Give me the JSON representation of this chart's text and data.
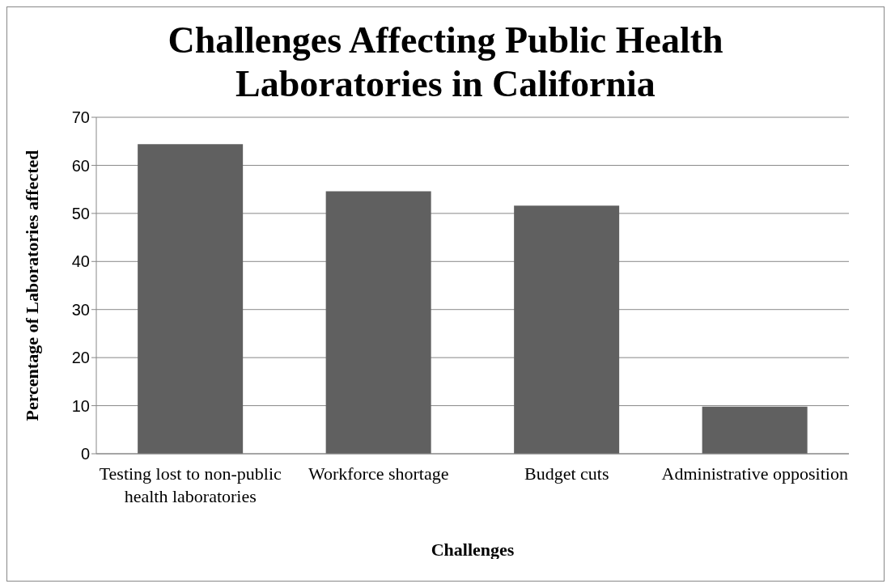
{
  "chart_data": {
    "type": "bar",
    "title": "Challenges Affecting Public Health Laboratories in California",
    "xlabel": "Challenges",
    "ylabel": "Percentage of Laboratories affected",
    "categories": [
      "Testing lost to non-public health laboratories",
      "Workforce shortage",
      "Budget cuts",
      "Administrative opposition"
    ],
    "values": [
      64.4,
      54.6,
      51.6,
      9.8
    ],
    "color": "#606060",
    "ylim": [
      0,
      70
    ],
    "yticks": [
      0,
      10,
      20,
      30,
      40,
      50,
      60,
      70
    ],
    "grid": "y",
    "legend": false
  }
}
